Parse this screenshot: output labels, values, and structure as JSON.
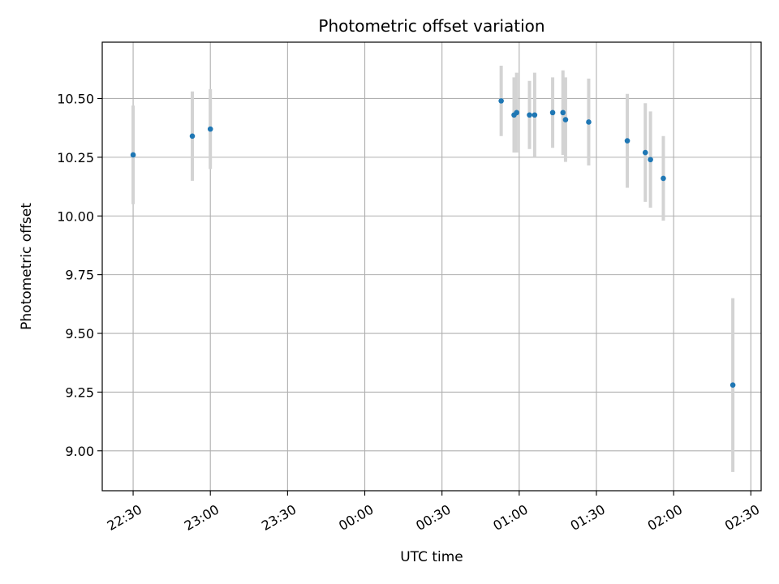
{
  "chart_data": {
    "type": "scatter",
    "title": "Photometric offset variation",
    "xlabel": "UTC time",
    "ylabel": "Photometric offset",
    "xlim": [
      "22:18",
      "02:34"
    ],
    "ylim": [
      8.83,
      10.74
    ],
    "grid": true,
    "x_ticks": [
      "22:30",
      "23:00",
      "23:30",
      "00:00",
      "00:30",
      "01:00",
      "01:30",
      "02:00",
      "02:30"
    ],
    "y_ticks": [
      "9.00",
      "9.25",
      "9.50",
      "9.75",
      "10.00",
      "10.25",
      "10.50"
    ],
    "colors": {
      "point": "#1f77b4",
      "errorbar": "#d3d3d3",
      "grid": "#b0b0b0"
    },
    "series": [
      {
        "points": [
          {
            "x": "22:30",
            "y": 10.26,
            "err": 0.21
          },
          {
            "x": "22:53",
            "y": 10.34,
            "err": 0.19
          },
          {
            "x": "23:00",
            "y": 10.37,
            "err": 0.17
          },
          {
            "x": "00:53",
            "y": 10.49,
            "err": 0.15
          },
          {
            "x": "00:58",
            "y": 10.43,
            "err": 0.16
          },
          {
            "x": "00:59",
            "y": 10.44,
            "err": 0.17
          },
          {
            "x": "01:04",
            "y": 10.43,
            "err": 0.145
          },
          {
            "x": "01:06",
            "y": 10.43,
            "err": 0.18
          },
          {
            "x": "01:13",
            "y": 10.44,
            "err": 0.15
          },
          {
            "x": "01:17",
            "y": 10.44,
            "err": 0.18
          },
          {
            "x": "01:18",
            "y": 10.41,
            "err": 0.18
          },
          {
            "x": "01:27",
            "y": 10.4,
            "err": 0.185
          },
          {
            "x": "01:42",
            "y": 10.32,
            "err": 0.2
          },
          {
            "x": "01:49",
            "y": 10.27,
            "err": 0.21
          },
          {
            "x": "01:51",
            "y": 10.24,
            "err": 0.205
          },
          {
            "x": "01:56",
            "y": 10.16,
            "err": 0.18
          },
          {
            "x": "02:23",
            "y": 9.28,
            "err": 0.37
          }
        ]
      }
    ]
  }
}
